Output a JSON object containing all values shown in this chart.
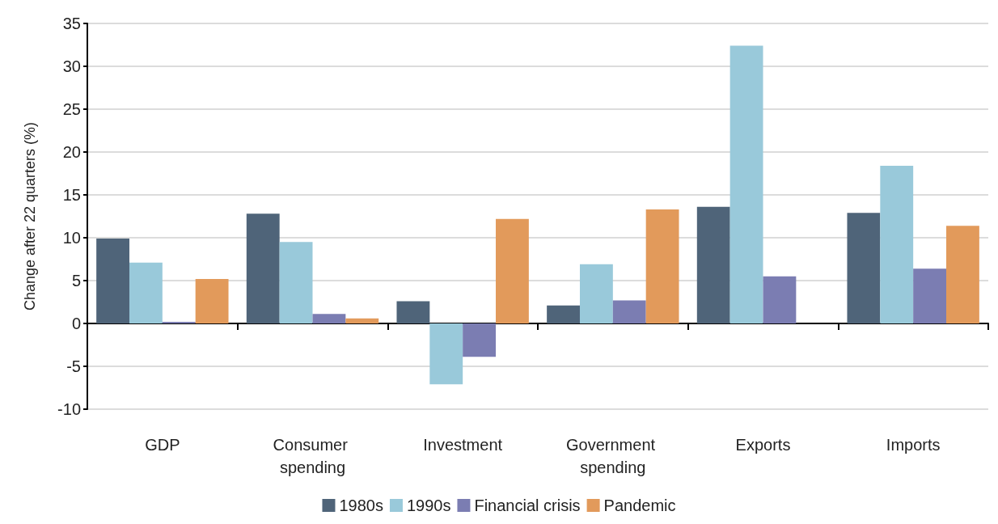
{
  "chart_data": {
    "type": "bar",
    "ylabel": "Change after 22 quarters (%)",
    "categories": [
      "GDP",
      "Consumer spending",
      "Investment",
      "Government spending",
      "Exports",
      "Imports"
    ],
    "series": [
      {
        "name": "1980s",
        "color": "#4f6479",
        "values": [
          9.9,
          12.8,
          2.6,
          2.1,
          13.6,
          12.9
        ]
      },
      {
        "name": "1990s",
        "color": "#99c9da",
        "values": [
          7.1,
          9.5,
          -7.1,
          6.9,
          32.4,
          18.4
        ]
      },
      {
        "name": "Financial crisis",
        "color": "#7b7db2",
        "values": [
          0.2,
          1.1,
          -3.9,
          2.7,
          5.5,
          6.4
        ]
      },
      {
        "name": "Pandemic",
        "color": "#e29a5b",
        "values": [
          5.2,
          0.6,
          12.2,
          13.3,
          null,
          11.4
        ]
      }
    ],
    "ylim": [
      -10,
      35
    ],
    "yticks": [
      -10,
      -5,
      0,
      5,
      10,
      15,
      20,
      25,
      30,
      35
    ],
    "grid": "y",
    "legend": "bottom"
  }
}
